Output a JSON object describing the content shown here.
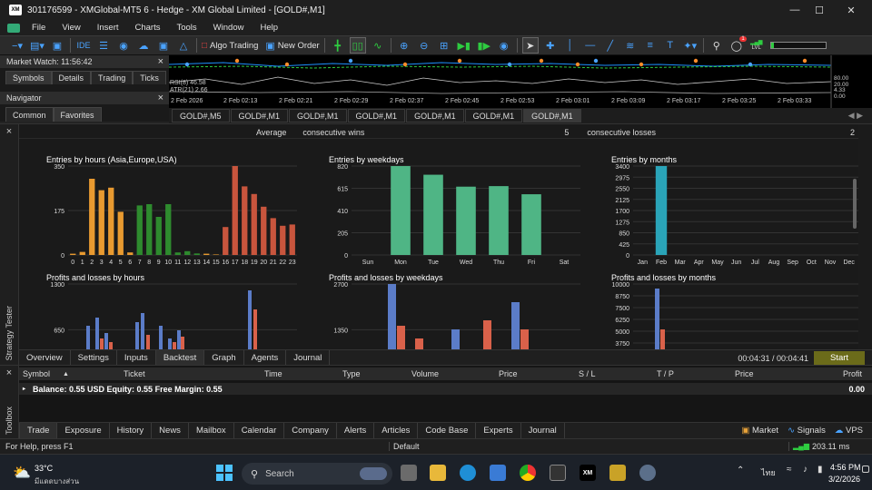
{
  "window": {
    "title": "301176599 - XMGlobal-MT5 6 - Hedge - XM Global Limited - [GOLD#,M1]",
    "logo": "XM"
  },
  "menu": [
    "File",
    "View",
    "Insert",
    "Charts",
    "Tools",
    "Window",
    "Help"
  ],
  "toolbar": {
    "algo_trading": "Algo Trading",
    "new_order": "New Order",
    "ide": "IDE",
    "notif_count": "1",
    "lvl": "LVL"
  },
  "market_watch": {
    "title": "Market Watch: 11:56:42",
    "tabs": [
      "Symbols",
      "Details",
      "Trading",
      "Ticks"
    ]
  },
  "navigator": {
    "title": "Navigator",
    "tabs": [
      "Common",
      "Favorites"
    ]
  },
  "chart": {
    "rsi": "RSI(8) 46.58",
    "atr": "ATR(21) 2.66",
    "time_labels": [
      "2 Feb 2026",
      "2 Feb 02:13",
      "2 Feb 02:21",
      "2 Feb 02:29",
      "2 Feb 02:37",
      "2 Feb 02:45",
      "2 Feb 02:53",
      "2 Feb 03:01",
      "2 Feb 03:09",
      "2 Feb 03:17",
      "2 Feb 03:25",
      "2 Feb 03:33"
    ],
    "right_labels": [
      "80.00",
      "20.00",
      "4.33",
      "0.00"
    ]
  },
  "chart_tabs": [
    "GOLD#,M5",
    "GOLD#,M1",
    "GOLD#,M1",
    "GOLD#,M1",
    "GOLD#,M1",
    "GOLD#,M1",
    "GOLD#,M1"
  ],
  "tester": {
    "side_label": "Strategy Tester",
    "summary": {
      "label1": "Average",
      "label2": "consecutive wins",
      "value2": "5",
      "label3": "consecutive losses",
      "value3": "2"
    },
    "tabs": [
      "Overview",
      "Settings",
      "Inputs",
      "Backtest",
      "Graph",
      "Agents",
      "Journal"
    ],
    "time": "00:04:31 / 00:04:41",
    "start": "Start"
  },
  "charts": {
    "hours": {
      "title": "Entries by hours (Asia,Europe,USA)",
      "yticks": [
        "350",
        "175",
        "0"
      ],
      "ymax": 350,
      "xlabels": [
        "0",
        "1",
        "2",
        "3",
        "4",
        "5",
        "6",
        "7",
        "8",
        "9",
        "10",
        "11",
        "12",
        "13",
        "14",
        "15",
        "16",
        "17",
        "18",
        "19",
        "20",
        "21",
        "22",
        "23"
      ],
      "values": [
        5,
        12,
        300,
        255,
        265,
        170,
        10,
        195,
        200,
        150,
        200,
        10,
        15,
        6,
        5,
        2,
        110,
        350,
        270,
        240,
        190,
        145,
        115,
        120
      ]
    },
    "weekdays": {
      "title": "Entries by weekdays",
      "yticks": [
        "820",
        "615",
        "410",
        "205",
        "0"
      ],
      "ymax": 820,
      "xlabels": [
        "Sun",
        "Mon",
        "Tue",
        "Wed",
        "Thu",
        "Fri",
        "Sat"
      ],
      "values": [
        0,
        820,
        740,
        630,
        635,
        560,
        0
      ]
    },
    "months": {
      "title": "Entries by months",
      "yticks": [
        "3400",
        "2975",
        "2550",
        "2125",
        "1700",
        "1275",
        "850",
        "425",
        "0"
      ],
      "ymax": 3400,
      "xlabels": [
        "Jan",
        "Feb",
        "Mar",
        "Apr",
        "May",
        "Jun",
        "Jul",
        "Aug",
        "Sep",
        "Oct",
        "Nov",
        "Dec"
      ],
      "values": [
        0,
        3400,
        0,
        0,
        0,
        0,
        0,
        0,
        0,
        0,
        0,
        0
      ]
    },
    "pl_hours": {
      "title": "Profits and losses by hours",
      "yticks": [
        "1300",
        "650"
      ]
    },
    "pl_weekdays": {
      "title": "Profits and losses by weekdays",
      "yticks": [
        "2700",
        "1350"
      ]
    },
    "pl_months": {
      "title": "Profits and losses by months",
      "yticks": [
        "10000",
        "8750",
        "7500",
        "6250",
        "5000",
        "3750"
      ]
    }
  },
  "toolbox": {
    "side_label": "Toolbox",
    "columns": [
      "Symbol",
      "Ticket",
      "Time",
      "Type",
      "Volume",
      "Price",
      "S / L",
      "T / P",
      "Price",
      "Profit"
    ],
    "balance": "Balance: 0.55 USD  Equity: 0.55  Free Margin: 0.55",
    "profit": "0.00",
    "tabs": [
      "Trade",
      "Exposure",
      "History",
      "News",
      "Mailbox",
      "Calendar",
      "Company",
      "Alerts",
      "Articles",
      "Code Base",
      "Experts",
      "Journal"
    ],
    "right": [
      "Market",
      "Signals",
      "VPS"
    ]
  },
  "status": {
    "help": "For Help, press F1",
    "profile": "Default",
    "ping": "203.11 ms"
  },
  "taskbar": {
    "temp": "33°C",
    "weather": "มีแดดบางส่วน",
    "search": "Search",
    "lang": "ไทย",
    "time": "4:56 PM",
    "date": "3/2/2026"
  }
}
